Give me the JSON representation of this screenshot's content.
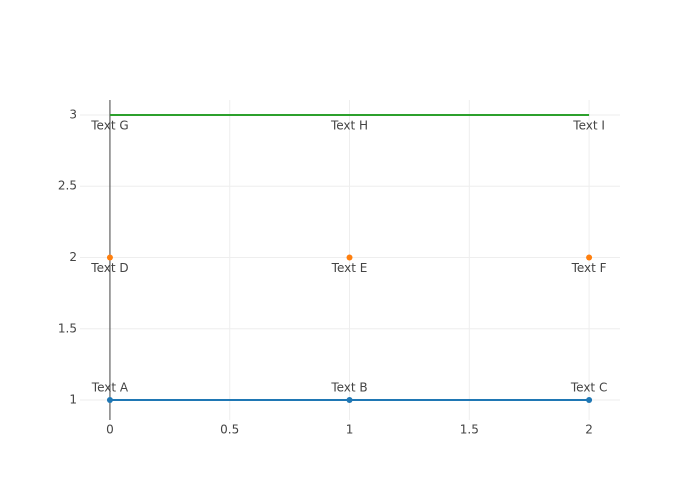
{
  "chart_data": {
    "type": "line",
    "x": [
      0,
      1,
      2
    ],
    "series": [
      {
        "mode": "lines+markers",
        "color": "#1f77b4",
        "values": [
          1,
          1,
          1
        ],
        "text": [
          "Text A",
          "Text B",
          "Text C"
        ],
        "textposition": "top"
      },
      {
        "mode": "markers",
        "color": "#ff7f0e",
        "values": [
          2,
          2,
          2
        ],
        "text": [
          "Text D",
          "Text E",
          "Text F"
        ],
        "textposition": "bottom"
      },
      {
        "mode": "lines",
        "color": "#2ca02c",
        "values": [
          3,
          3,
          3
        ],
        "text": [
          "Text G",
          "Text H",
          "Text I"
        ],
        "textposition": "bottom"
      }
    ],
    "xlim": [
      -0.125,
      2.129
    ],
    "ylim": [
      0.86,
      3.105
    ],
    "xticks": [
      0,
      0.5,
      1,
      1.5,
      2
    ],
    "yticks": [
      1,
      1.5,
      2,
      2.5,
      3
    ],
    "grid": true,
    "zeroline": true
  }
}
